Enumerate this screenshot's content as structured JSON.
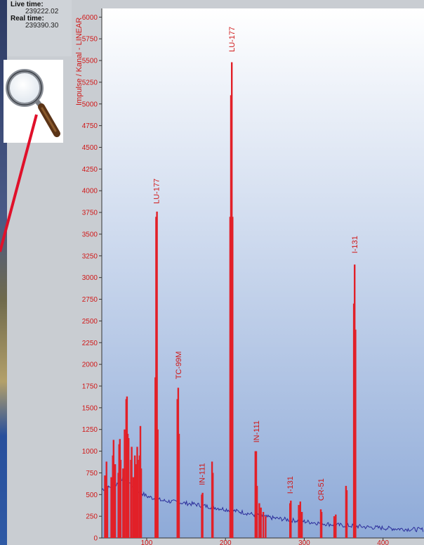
{
  "info": {
    "live_time_label": "Live time:",
    "live_time_value": "239222.02",
    "real_time_label": "Real time:",
    "real_time_value": "239390.30"
  },
  "colors": {
    "peak": "#e22028",
    "background_trace": "#2a2c9a",
    "axis_text": "#d01818",
    "plot_top": "#ffffff",
    "plot_bottom": "#8eaad8"
  },
  "icons": [
    "magnifier-icon"
  ],
  "chart_data": {
    "type": "bar",
    "title": "",
    "ylabel": "Impulse / Kanal - LINEAR",
    "xlabel": "",
    "ylim": [
      0,
      6100
    ],
    "xlim": [
      43,
      452
    ],
    "y_ticks": [
      0,
      250,
      500,
      750,
      1000,
      1250,
      1500,
      1750,
      2000,
      2250,
      2500,
      2750,
      3000,
      3250,
      3500,
      3750,
      4000,
      4250,
      4500,
      4750,
      5000,
      5250,
      5500,
      5750,
      6000
    ],
    "x_ticks": [
      100,
      200,
      300,
      400
    ],
    "grid": false,
    "peaks": [
      {
        "x": 47,
        "y": 720
      },
      {
        "x": 49,
        "y": 880
      },
      {
        "x": 50,
        "y": 600
      },
      {
        "x": 55,
        "y": 700
      },
      {
        "x": 57,
        "y": 950
      },
      {
        "x": 58,
        "y": 1130
      },
      {
        "x": 60,
        "y": 850
      },
      {
        "x": 64,
        "y": 750
      },
      {
        "x": 65,
        "y": 1080
      },
      {
        "x": 66,
        "y": 1140
      },
      {
        "x": 67,
        "y": 900
      },
      {
        "x": 70,
        "y": 800
      },
      {
        "x": 72,
        "y": 1250
      },
      {
        "x": 74,
        "y": 1600
      },
      {
        "x": 75,
        "y": 1630
      },
      {
        "x": 76,
        "y": 1200
      },
      {
        "x": 77,
        "y": 1150
      },
      {
        "x": 80,
        "y": 900
      },
      {
        "x": 81,
        "y": 1050
      },
      {
        "x": 83,
        "y": 700
      },
      {
        "x": 85,
        "y": 950
      },
      {
        "x": 86,
        "y": 850
      },
      {
        "x": 88,
        "y": 1050
      },
      {
        "x": 89,
        "y": 900
      },
      {
        "x": 91,
        "y": 950
      },
      {
        "x": 92,
        "y": 1290
      },
      {
        "x": 93,
        "y": 800
      },
      {
        "x": 111,
        "y": 1850
      },
      {
        "x": 112,
        "y": 3700
      },
      {
        "x": 113,
        "y": 3760
      },
      {
        "x": 114,
        "y": 1250
      },
      {
        "x": 139,
        "y": 1600
      },
      {
        "x": 140,
        "y": 1730
      },
      {
        "x": 141,
        "y": 1200
      },
      {
        "x": 170,
        "y": 500
      },
      {
        "x": 171,
        "y": 520
      },
      {
        "x": 183,
        "y": 880
      },
      {
        "x": 184,
        "y": 750
      },
      {
        "x": 206,
        "y": 3700
      },
      {
        "x": 207,
        "y": 5100
      },
      {
        "x": 208,
        "y": 5480
      },
      {
        "x": 209,
        "y": 3700
      },
      {
        "x": 238,
        "y": 1000
      },
      {
        "x": 239,
        "y": 1000
      },
      {
        "x": 240,
        "y": 600
      },
      {
        "x": 243,
        "y": 400
      },
      {
        "x": 245,
        "y": 350
      },
      {
        "x": 248,
        "y": 300
      },
      {
        "x": 251,
        "y": 250
      },
      {
        "x": 282,
        "y": 400
      },
      {
        "x": 283,
        "y": 430
      },
      {
        "x": 293,
        "y": 380
      },
      {
        "x": 295,
        "y": 420
      },
      {
        "x": 297,
        "y": 300
      },
      {
        "x": 321,
        "y": 330
      },
      {
        "x": 322,
        "y": 300
      },
      {
        "x": 338,
        "y": 250
      },
      {
        "x": 340,
        "y": 270
      },
      {
        "x": 353,
        "y": 600
      },
      {
        "x": 354,
        "y": 550
      },
      {
        "x": 363,
        "y": 2700
      },
      {
        "x": 364,
        "y": 3150
      },
      {
        "x": 365,
        "y": 2400
      }
    ],
    "background": [
      {
        "x": 43,
        "y": 560
      },
      {
        "x": 60,
        "y": 600
      },
      {
        "x": 70,
        "y": 700
      },
      {
        "x": 80,
        "y": 620
      },
      {
        "x": 90,
        "y": 540
      },
      {
        "x": 100,
        "y": 480
      },
      {
        "x": 120,
        "y": 430
      },
      {
        "x": 140,
        "y": 410
      },
      {
        "x": 160,
        "y": 390
      },
      {
        "x": 180,
        "y": 360
      },
      {
        "x": 200,
        "y": 330
      },
      {
        "x": 220,
        "y": 300
      },
      {
        "x": 240,
        "y": 260
      },
      {
        "x": 260,
        "y": 230
      },
      {
        "x": 280,
        "y": 210
      },
      {
        "x": 300,
        "y": 190
      },
      {
        "x": 320,
        "y": 170
      },
      {
        "x": 340,
        "y": 150
      },
      {
        "x": 360,
        "y": 140
      },
      {
        "x": 380,
        "y": 125
      },
      {
        "x": 400,
        "y": 115
      },
      {
        "x": 420,
        "y": 105
      },
      {
        "x": 452,
        "y": 95
      }
    ],
    "annotations": [
      {
        "label": "LU-177",
        "x": 112,
        "y": 3800
      },
      {
        "label": "TC-99M",
        "x": 140,
        "y": 1780
      },
      {
        "label": "IN-111",
        "x": 170,
        "y": 560
      },
      {
        "label": "LU-177",
        "x": 208,
        "y": 5550
      },
      {
        "label": "IN-111",
        "x": 239,
        "y": 1050
      },
      {
        "label": "I-131",
        "x": 282,
        "y": 460
      },
      {
        "label": "CR-51",
        "x": 321,
        "y": 380
      },
      {
        "label": "I-131",
        "x": 364,
        "y": 3230
      }
    ]
  }
}
